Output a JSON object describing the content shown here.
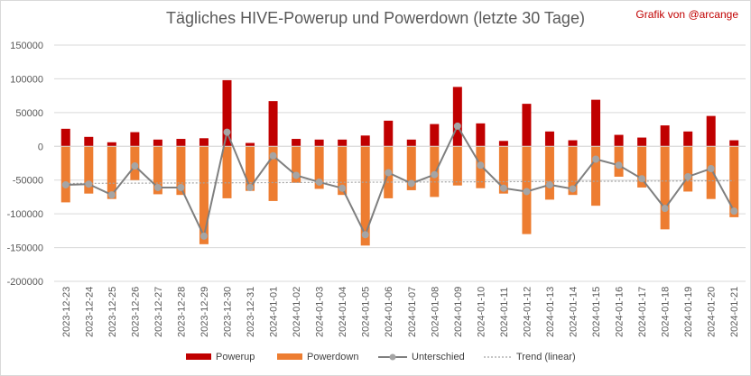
{
  "header": {
    "title": "Tägliches HIVE-Powerup und Powerdown (letzte 30 Tage)",
    "credit": "Grafik von @arcange"
  },
  "colors": {
    "powerup": "#c00000",
    "powerdown": "#ed7d31",
    "unterschied": "#7f7f7f",
    "trend": "#a5a5a5",
    "grid": "#d9d9d9"
  },
  "chart_data": {
    "type": "bar",
    "title": "Tägliches HIVE-Powerup und Powerdown (letzte 30 Tage)",
    "ylim": [
      -200000,
      150000
    ],
    "yticks": [
      150000,
      100000,
      50000,
      0,
      -50000,
      -100000,
      -150000,
      -200000
    ],
    "ytick_labels": [
      "150000",
      "100000",
      "50000",
      "0",
      "-50000",
      "-100000",
      "-150000",
      "-200000"
    ],
    "grid": true,
    "legend_position": "bottom",
    "categories": [
      "2023-12-23",
      "2023-12-24",
      "2023-12-25",
      "2023-12-26",
      "2023-12-27",
      "2023-12-28",
      "2023-12-29",
      "2023-12-30",
      "2023-12-31",
      "2024-01-01",
      "2024-01-02",
      "2024-01-03",
      "2024-01-04",
      "2024-01-05",
      "2024-01-06",
      "2024-01-07",
      "2024-01-08",
      "2024-01-09",
      "2024-01-10",
      "2024-01-11",
      "2024-01-12",
      "2024-01-13",
      "2024-01-14",
      "2024-01-15",
      "2024-01-16",
      "2024-01-17",
      "2024-01-18",
      "2024-01-19",
      "2024-01-20",
      "2024-01-21"
    ],
    "series": [
      {
        "name": "Powerup",
        "type": "bar",
        "values": [
          26000,
          14000,
          6000,
          21000,
          10000,
          11000,
          12000,
          98000,
          5000,
          67000,
          11000,
          10000,
          10000,
          16000,
          38000,
          10000,
          33000,
          88000,
          34000,
          8000,
          63000,
          22000,
          9000,
          69000,
          17000,
          13000,
          31000,
          22000,
          45000,
          9000
        ]
      },
      {
        "name": "Powerdown",
        "type": "bar",
        "values": [
          -83000,
          -70000,
          -78000,
          -50000,
          -71000,
          -72000,
          -145000,
          -77000,
          -66000,
          -81000,
          -54000,
          -63000,
          -72000,
          -147000,
          -77000,
          -65000,
          -75000,
          -58000,
          -62000,
          -70000,
          -130000,
          -79000,
          -72000,
          -88000,
          -45000,
          -61000,
          -123000,
          -67000,
          -78000,
          -105000
        ]
      },
      {
        "name": "Unterschied",
        "type": "line",
        "values": [
          -57000,
          -56000,
          -72000,
          -29000,
          -61000,
          -61000,
          -133000,
          21000,
          -61000,
          -14000,
          -43000,
          -53000,
          -62000,
          -131000,
          -39000,
          -55000,
          -42000,
          30000,
          -28000,
          -62000,
          -67000,
          -57000,
          -63000,
          -19000,
          -28000,
          -48000,
          -92000,
          -45000,
          -33000,
          -96000
        ]
      },
      {
        "name": "Trend (linear)",
        "type": "line",
        "start": -55000,
        "end": -51000
      }
    ]
  }
}
